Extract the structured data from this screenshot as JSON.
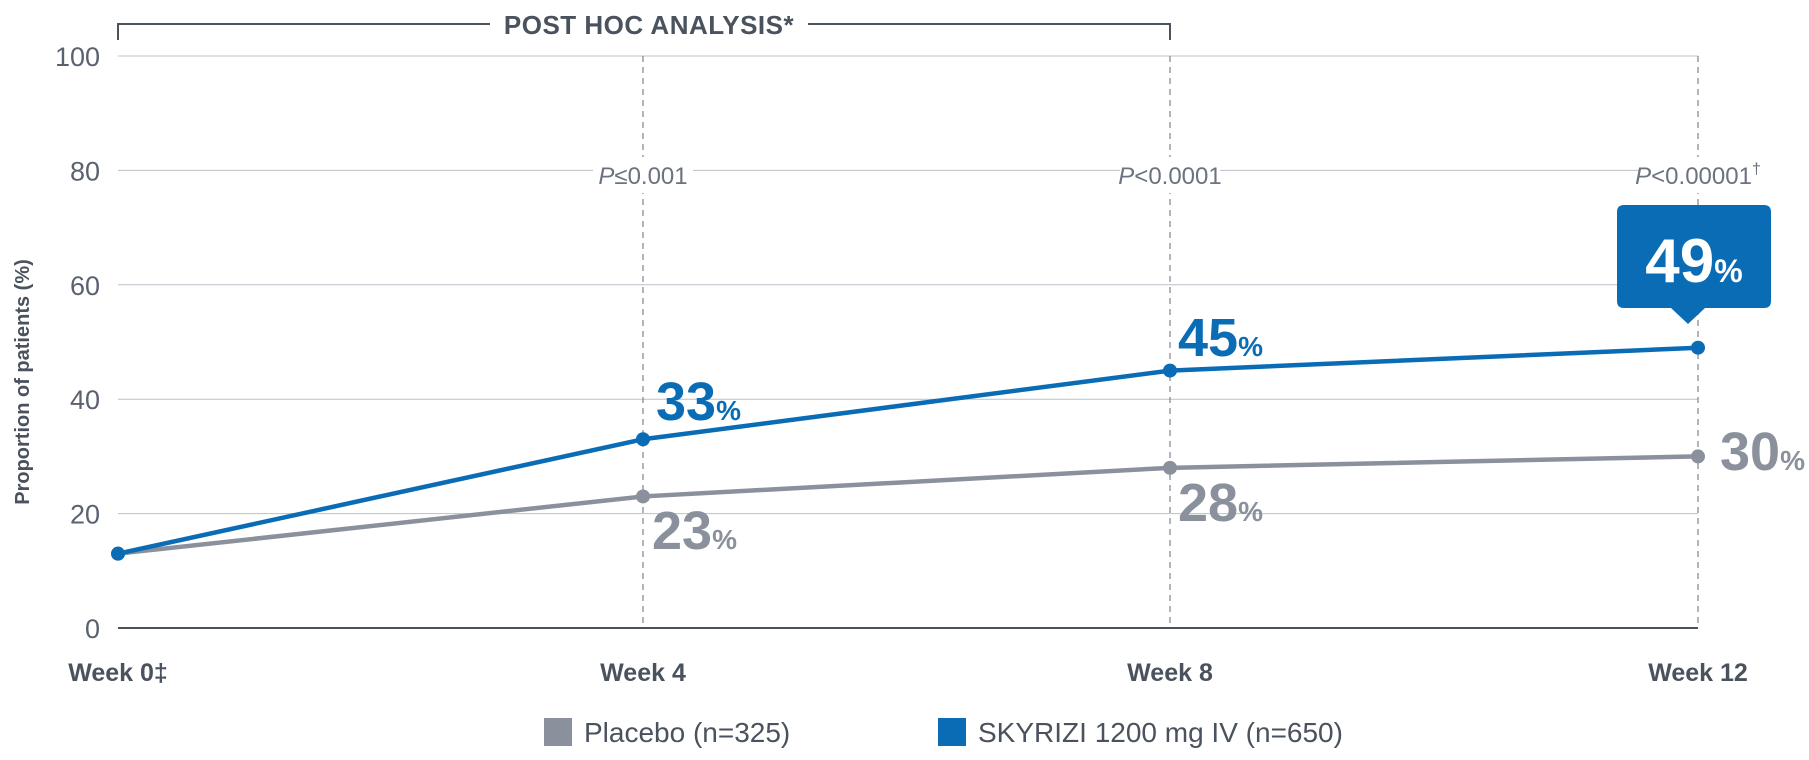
{
  "chart_data": {
    "type": "line",
    "title": "",
    "bracket_label": "POST HOC ANALYSIS*",
    "ylabel": "Proportion of patients (%)",
    "xlabel": "",
    "ylim": [
      0,
      100
    ],
    "yticks": [
      0,
      20,
      40,
      60,
      80,
      100
    ],
    "grid": true,
    "categories": [
      "Week 0‡",
      "Week 4",
      "Week 8",
      "Week 12"
    ],
    "series": [
      {
        "name": "Placebo (n=325)",
        "color": "#8a919c",
        "values": [
          13,
          23,
          28,
          30
        ],
        "labels": [
          null,
          "23",
          "28",
          "30"
        ]
      },
      {
        "name": "SKYRIZI 1200 mg IV (n=650)",
        "color": "#0a6cb5",
        "values": [
          13,
          33,
          45,
          49
        ],
        "labels": [
          null,
          "33",
          "45",
          "49"
        ]
      }
    ],
    "percent_suffix": "%",
    "p_values": [
      {
        "category_index": 1,
        "prefix": "P",
        "text": "≤0.001",
        "sup": ""
      },
      {
        "category_index": 2,
        "prefix": "P",
        "text": "<0.0001",
        "sup": ""
      },
      {
        "category_index": 3,
        "prefix": "P",
        "text": "<0.00001",
        "sup": "†"
      }
    ],
    "legend_position": "bottom-center"
  }
}
